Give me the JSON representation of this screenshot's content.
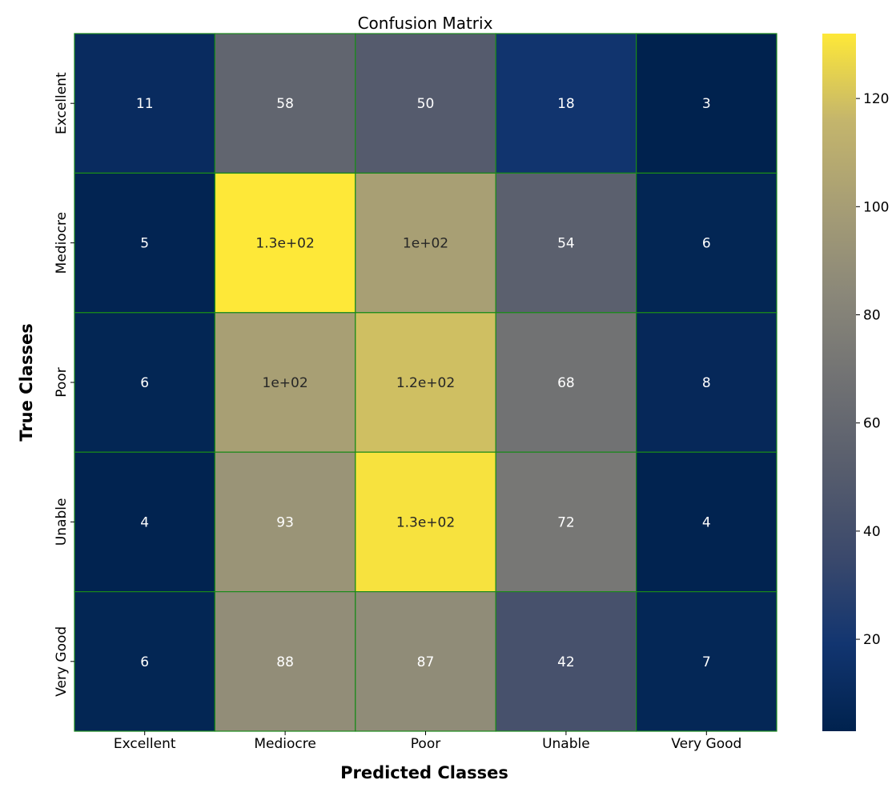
{
  "chart_data": {
    "type": "heatmap",
    "title": "Confusion Matrix",
    "xlabel": "Predicted Classes",
    "ylabel": "True Classes",
    "x_categories": [
      "Excellent",
      "Mediocre",
      "Poor",
      "Unable",
      "Very Good"
    ],
    "y_categories": [
      "Excellent",
      "Mediocre",
      "Poor",
      "Unable",
      "Very Good"
    ],
    "values": [
      [
        11,
        58,
        50,
        18,
        3
      ],
      [
        5,
        132,
        101,
        54,
        6
      ],
      [
        6,
        101,
        119,
        68,
        8
      ],
      [
        4,
        93,
        130,
        72,
        4
      ],
      [
        6,
        88,
        87,
        42,
        7
      ]
    ],
    "cell_labels": [
      [
        "11",
        "58",
        "50",
        "18",
        "3"
      ],
      [
        "5",
        "1.3e+02",
        "1e+02",
        "54",
        "6"
      ],
      [
        "6",
        "1e+02",
        "1.2e+02",
        "68",
        "8"
      ],
      [
        "4",
        "93",
        "1.3e+02",
        "72",
        "4"
      ],
      [
        "6",
        "88",
        "87",
        "42",
        "7"
      ]
    ],
    "colorscale": "cividis",
    "color_range": [
      3,
      132
    ],
    "colorbar_ticks": [
      20,
      40,
      60,
      80,
      100,
      120
    ],
    "cell_border_color": "#1a8a1a"
  }
}
